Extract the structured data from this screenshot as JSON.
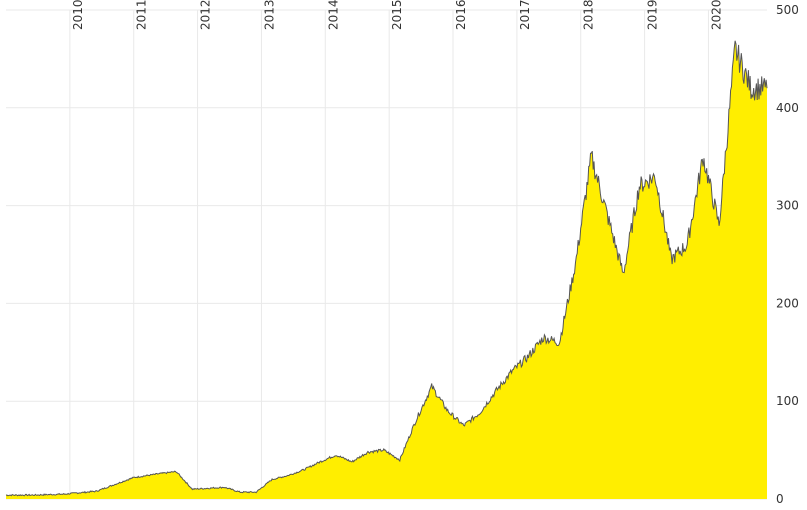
{
  "chart_data": {
    "type": "area",
    "title": "",
    "xlabel": "",
    "ylabel": "",
    "x_ticks": [
      "2010",
      "2011",
      "2012",
      "2013",
      "2014",
      "2015",
      "2016",
      "2017",
      "2018",
      "2019",
      "2020"
    ],
    "y_ticks": [
      "0",
      "100",
      "200",
      "300",
      "400",
      "500"
    ],
    "ylim": [
      0,
      500
    ],
    "xlim": [
      "2009-01",
      "2020-12"
    ],
    "grid": true,
    "colors": {
      "fill": "#ffee00",
      "line": "#555555",
      "grid": "#e9e9e9",
      "text": "#333333"
    },
    "series": [
      {
        "x": [
          "2009-01",
          "2009-06",
          "2009-12",
          "2010-06",
          "2010-09",
          "2011-01",
          "2011-06",
          "2011-09",
          "2011-12",
          "2012-06",
          "2012-09",
          "2012-12",
          "2013-03",
          "2013-06",
          "2013-09",
          "2013-12",
          "2014-03",
          "2014-06",
          "2014-09",
          "2014-12",
          "2015-03",
          "2015-06",
          "2015-09",
          "2015-12",
          "2016-03",
          "2016-06",
          "2016-09",
          "2016-12",
          "2017-03",
          "2017-06",
          "2017-09",
          "2017-12",
          "2018-03",
          "2018-06",
          "2018-09",
          "2018-12",
          "2019-03",
          "2019-06",
          "2019-09",
          "2019-12",
          "2020-03",
          "2020-06",
          "2020-09",
          "2020-12"
        ],
        "values": [
          4,
          4,
          5,
          8,
          14,
          22,
          26,
          28,
          10,
          12,
          7,
          7,
          20,
          24,
          30,
          38,
          45,
          38,
          48,
          50,
          40,
          80,
          115,
          90,
          75,
          88,
          110,
          130,
          145,
          165,
          160,
          240,
          350,
          290,
          230,
          320,
          330,
          245,
          260,
          350,
          280,
          460,
          420,
          420
        ]
      }
    ]
  }
}
